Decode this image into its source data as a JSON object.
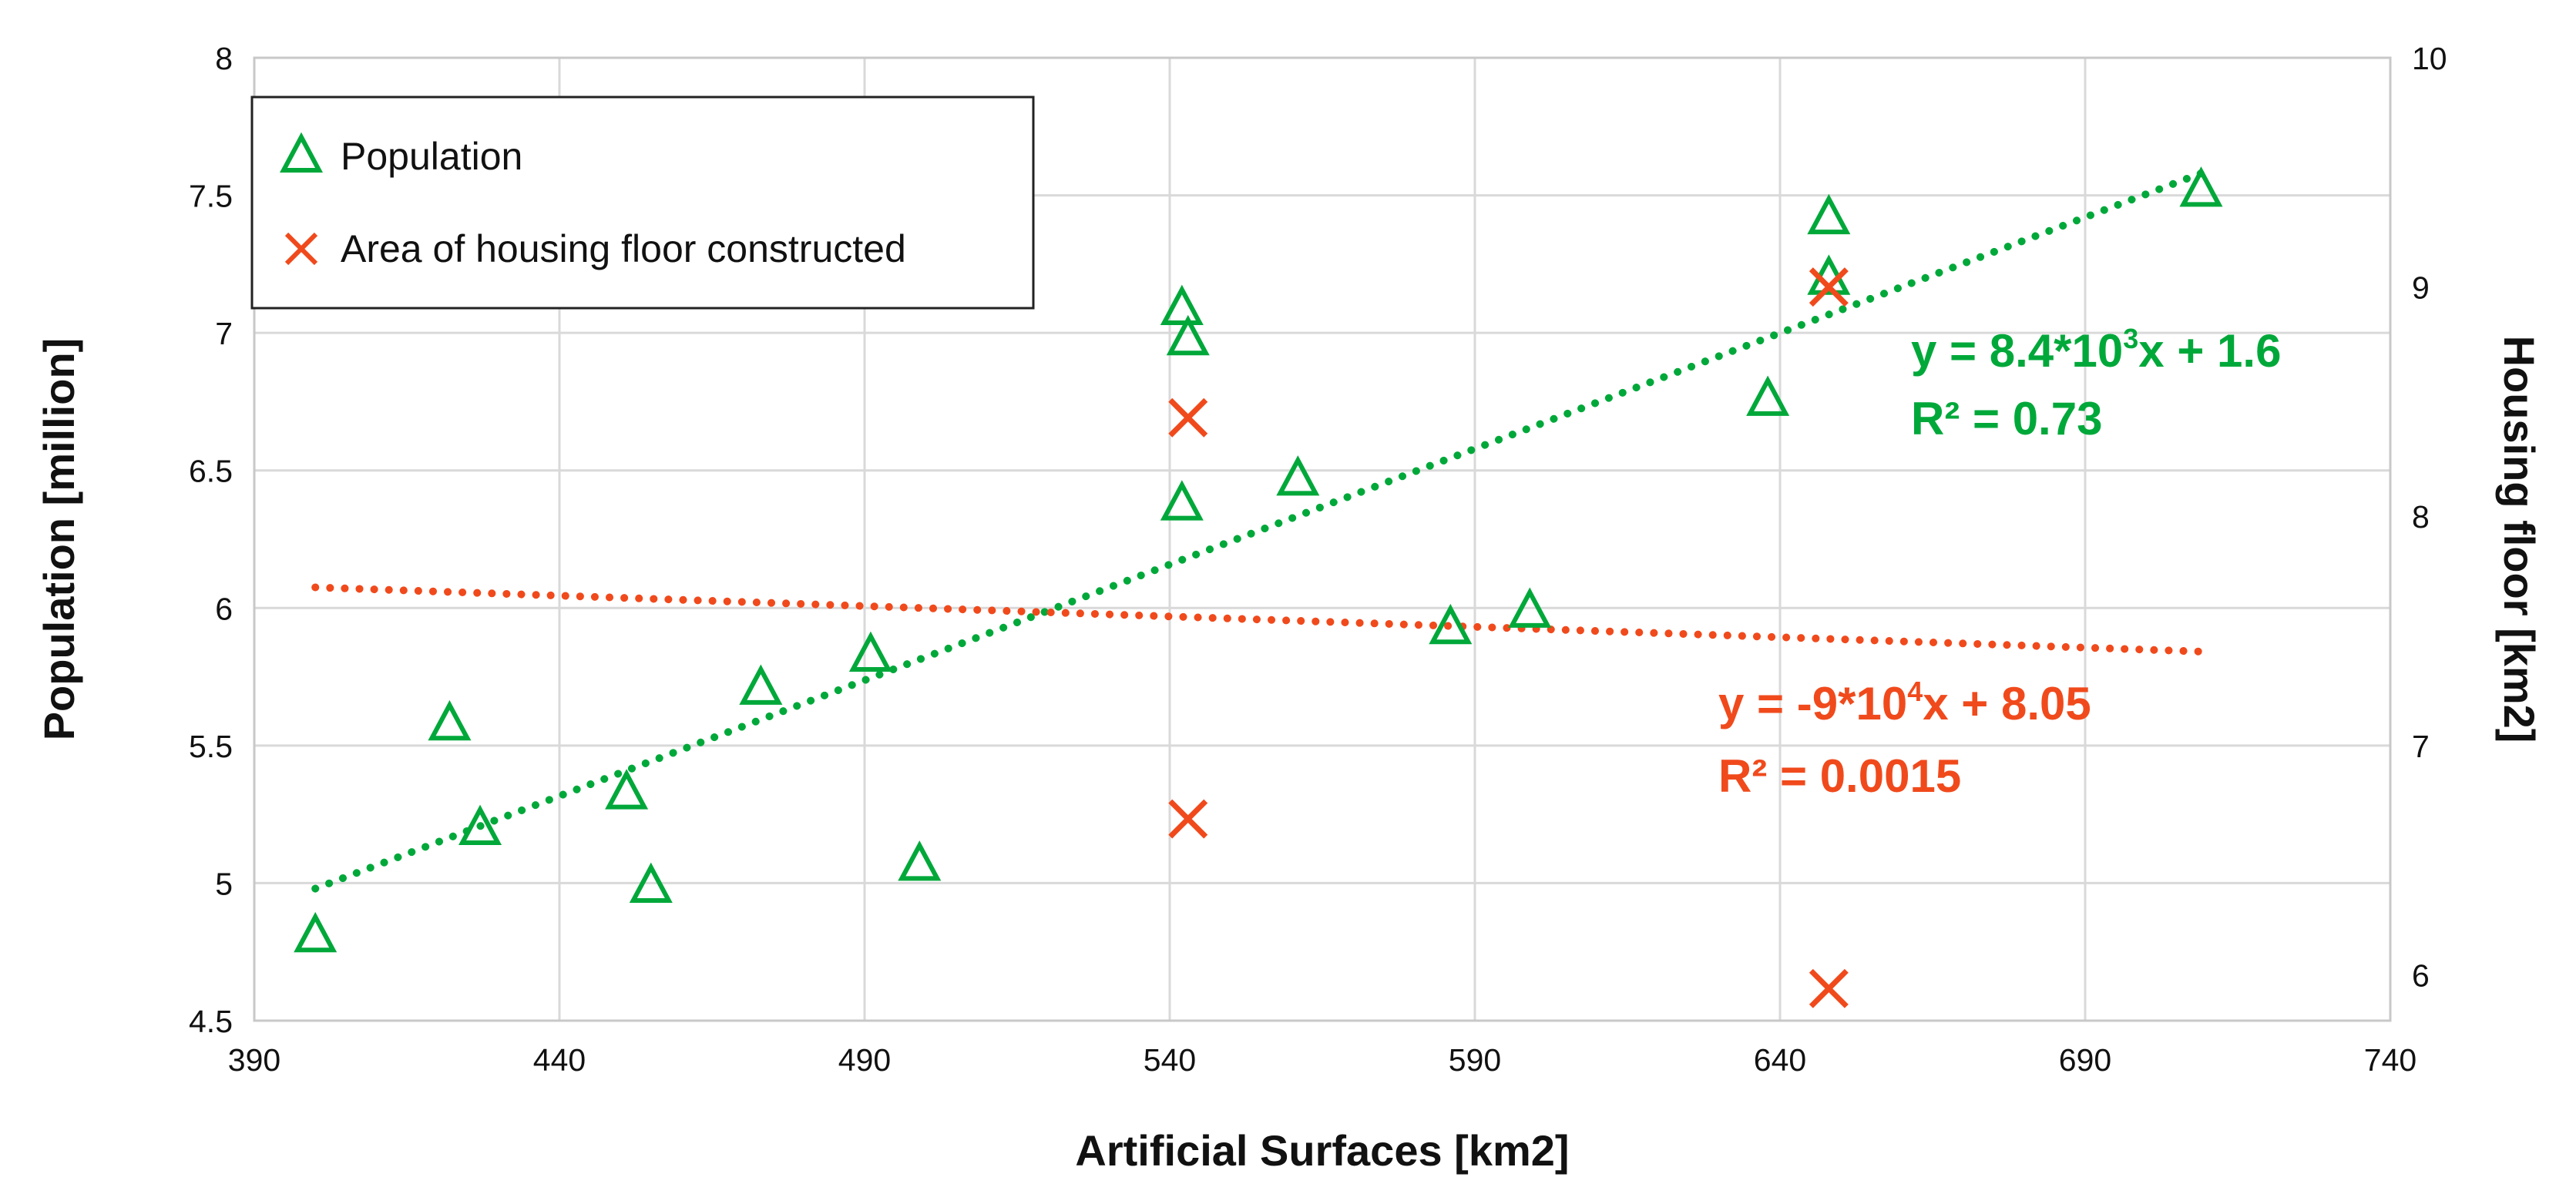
{
  "chart_data": {
    "type": "scatter",
    "title": "",
    "xlabel": "Artificial Surfaces [km2]",
    "ylabel": "Population [million]",
    "y2label": "Housing floor [km2]",
    "xlim": [
      390,
      740
    ],
    "ylim": [
      4.5,
      8
    ],
    "y2lim": [
      5.8,
      10
    ],
    "grid": true,
    "legend_position": "top-left",
    "x_ticks": [
      "390",
      "440",
      "490",
      "540",
      "590",
      "640",
      "690",
      "740"
    ],
    "y_ticks": [
      "4.5",
      "5",
      "5.5",
      "6",
      "6.5",
      "7",
      "7.5",
      "8"
    ],
    "y2_ticks": [
      "6",
      "7",
      "8",
      "9",
      "10"
    ],
    "series": [
      {
        "name": "Population",
        "axis": "left",
        "marker": "triangle",
        "color": "#00a83a",
        "points": [
          {
            "x": 400,
            "y": 4.81
          },
          {
            "x": 422,
            "y": 5.58
          },
          {
            "x": 427,
            "y": 5.2
          },
          {
            "x": 451,
            "y": 5.33
          },
          {
            "x": 455,
            "y": 4.99
          },
          {
            "x": 473,
            "y": 5.71
          },
          {
            "x": 491,
            "y": 5.83
          },
          {
            "x": 499,
            "y": 5.07
          },
          {
            "x": 542,
            "y": 6.38
          },
          {
            "x": 542,
            "y": 7.09
          },
          {
            "x": 543,
            "y": 6.98
          },
          {
            "x": 561,
            "y": 6.47
          },
          {
            "x": 586,
            "y": 5.93
          },
          {
            "x": 599,
            "y": 5.99
          },
          {
            "x": 638,
            "y": 6.76
          },
          {
            "x": 648,
            "y": 7.42
          },
          {
            "x": 648,
            "y": 7.2
          },
          {
            "x": 709,
            "y": 7.52
          }
        ],
        "trendline": {
          "x_range": [
            400,
            709
          ],
          "y_range": [
            4.98,
            7.58
          ],
          "equation_base": "y = 8.4*10",
          "equation_exp": "3",
          "equation_tail": "x + 1.6",
          "r2_label": "R² = 0.73"
        }
      },
      {
        "name": "Area of housing floor constructed",
        "axis": "right",
        "marker": "x",
        "color": "#f04a1c",
        "points": [
          {
            "x": 543,
            "y": 8.43
          },
          {
            "x": 543,
            "y": 6.68
          },
          {
            "x": 648,
            "y": 9.0
          },
          {
            "x": 648,
            "y": 5.94
          }
        ],
        "trendline": {
          "x_range": [
            400,
            709
          ],
          "y_range": [
            7.69,
            7.41
          ],
          "equation_base": "y = -9*10",
          "equation_exp": "4",
          "equation_tail": "x  + 8.05",
          "r2_label": "R² = 0.0015"
        }
      }
    ]
  }
}
